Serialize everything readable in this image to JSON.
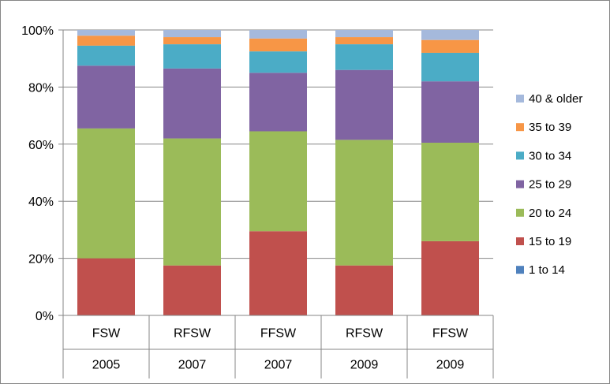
{
  "chart_data": {
    "type": "bar",
    "stacked": true,
    "percent": true,
    "categories": [
      {
        "label": "FSW",
        "group": "2005"
      },
      {
        "label": "RFSW",
        "group": "2007"
      },
      {
        "label": "FFSW",
        "group": "2007"
      },
      {
        "label": "RFSW",
        "group": "2009"
      },
      {
        "label": "FFSW",
        "group": "2009"
      }
    ],
    "series": [
      {
        "name": "1 to 14",
        "color": "#4F81BD",
        "values": [
          0,
          0,
          0,
          0,
          0
        ]
      },
      {
        "name": "15 to 19",
        "color": "#C0504D",
        "values": [
          20,
          17.5,
          29.5,
          17.5,
          26
        ]
      },
      {
        "name": "20 to 24",
        "color": "#9BBB59",
        "values": [
          45.5,
          44.5,
          35,
          44,
          34.5
        ]
      },
      {
        "name": "25 to 29",
        "color": "#8064A2",
        "values": [
          22,
          24.5,
          20.5,
          24.5,
          21.5
        ]
      },
      {
        "name": "30 to 34",
        "color": "#4BACC6",
        "values": [
          7,
          8.5,
          7.5,
          9,
          10
        ]
      },
      {
        "name": "35 to 39",
        "color": "#F79646",
        "values": [
          3.5,
          2.5,
          4.5,
          2.5,
          4.5
        ]
      },
      {
        "name": "40 & older",
        "color": "#A5B9DC",
        "values": [
          2,
          2.5,
          3,
          2.5,
          3.5
        ]
      }
    ],
    "ylim": [
      0,
      100
    ],
    "yticks": [
      "0%",
      "20%",
      "40%",
      "60%",
      "80%",
      "100%"
    ],
    "grid": true,
    "legend_position": "right"
  }
}
